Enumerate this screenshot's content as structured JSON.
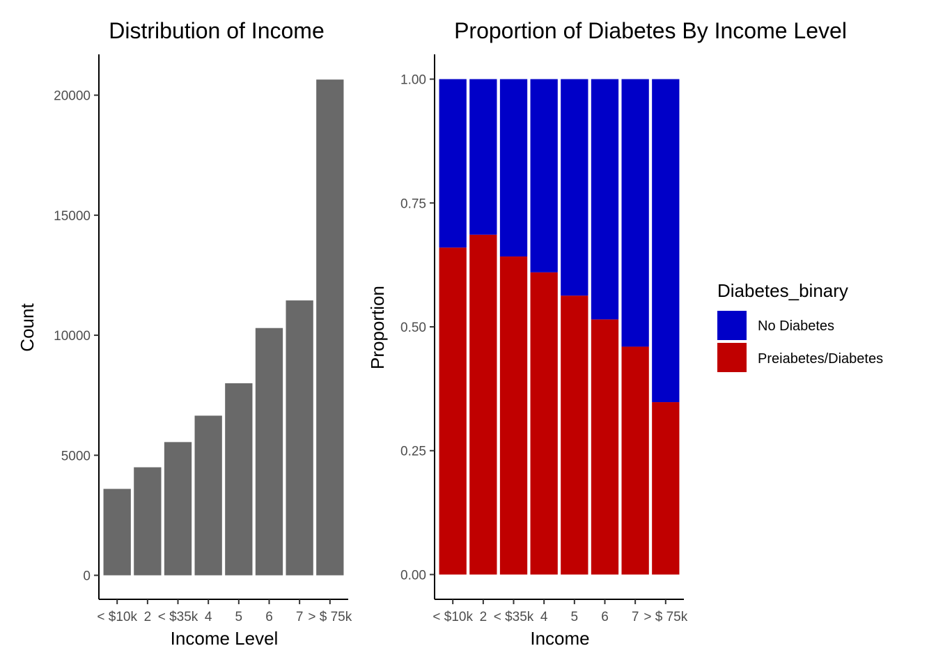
{
  "chart_data": [
    {
      "type": "bar",
      "title": "Distribution of Income",
      "xlabel": "Income Level",
      "ylabel": "Count",
      "categories": [
        "< $10k",
        "2",
        "< $35k",
        "4",
        "5",
        "6",
        "7",
        "> $ 75k"
      ],
      "values": [
        3600,
        4500,
        5550,
        6650,
        8000,
        10300,
        11450,
        20650
      ],
      "yticks": [
        0,
        5000,
        10000,
        15000,
        20000
      ],
      "ytick_labels": [
        "0",
        "5000",
        "10000",
        "15000",
        "20000"
      ],
      "ylim": [
        -1000,
        21700
      ],
      "bar_color": "#696969",
      "grid": false
    },
    {
      "type": "bar",
      "stacked": true,
      "title": "Proportion of Diabetes By Income Level",
      "xlabel": "Income",
      "ylabel": "Proportion",
      "categories": [
        "< $10k",
        "2",
        "< $35k",
        "4",
        "5",
        "6",
        "7",
        "> $ 75k"
      ],
      "series": [
        {
          "name": "Preiabetes/Diabetes",
          "color": "#c00000",
          "values": [
            0.66,
            0.686,
            0.642,
            0.61,
            0.563,
            0.515,
            0.46,
            0.348
          ]
        },
        {
          "name": "No Diabetes",
          "color": "#0000c8",
          "values": [
            0.34,
            0.314,
            0.358,
            0.39,
            0.437,
            0.485,
            0.54,
            0.652
          ]
        }
      ],
      "yticks": [
        0,
        0.25,
        0.5,
        0.75,
        1.0
      ],
      "ytick_labels": [
        "0.00",
        "0.25",
        "0.50",
        "0.75",
        "1.00"
      ],
      "ylim": [
        -0.05,
        1.05
      ],
      "grid": false,
      "legend": {
        "title": "Diabetes_binary",
        "placement": "right",
        "items": [
          {
            "label": "No Diabetes",
            "color": "#0000c8"
          },
          {
            "label": "Preiabetes/Diabetes",
            "color": "#c00000"
          }
        ]
      }
    }
  ]
}
